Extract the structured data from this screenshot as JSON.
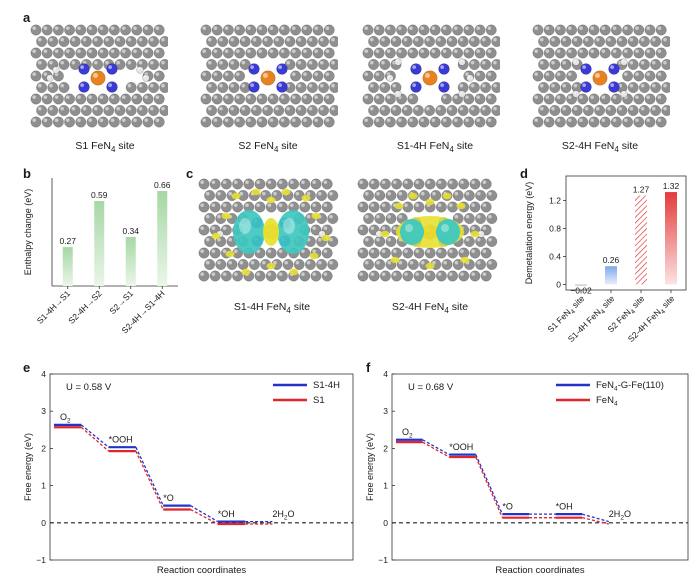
{
  "panels": {
    "a": {
      "letter": "a",
      "structures": [
        {
          "caption_main": "S1 FeN",
          "caption_sub": "4",
          "caption_tail": " site"
        },
        {
          "caption_main": "S2 FeN",
          "caption_sub": "4",
          "caption_tail": " site"
        },
        {
          "caption_main": "S1-4H FeN",
          "caption_sub": "4",
          "caption_tail": " site"
        },
        {
          "caption_main": "S2-4H FeN",
          "caption_sub": "4",
          "caption_tail": " site"
        }
      ]
    },
    "b": {
      "letter": "b"
    },
    "c": {
      "letter": "c",
      "structures": [
        {
          "caption_main": "S1-4H FeN",
          "caption_sub": "4",
          "caption_tail": " site"
        },
        {
          "caption_main": "S2-4H FeN",
          "caption_sub": "4",
          "caption_tail": " site"
        }
      ]
    },
    "d": {
      "letter": "d"
    },
    "e": {
      "letter": "e",
      "potential": "U = 0.58 V"
    },
    "f": {
      "letter": "f",
      "potential": "U = 0.68 V"
    }
  },
  "colors": {
    "carbon": "#8f8f8f",
    "hydrogen": "#e6e6e6",
    "nitrogen": "#3a3ad6",
    "iron": "#e8811e",
    "isosurface_cyan": "#3ec8c0",
    "isosurface_yellow": "#e8e030",
    "bar_green": "#a6d7a4",
    "bar_blue": "#7fa7ea",
    "bar_red": "#e23b3b",
    "line_blue": "#2333c9",
    "line_red": "#e0262c"
  },
  "chart_data": [
    {
      "panel": "b",
      "type": "bar",
      "ylabel": "Enthalpy change (eV)",
      "categories": [
        "S1-4H→S1",
        "S2-4H→S2",
        "S2→S1",
        "S2-4H→S1-4H"
      ],
      "values": [
        0.27,
        0.59,
        0.34,
        0.66
      ],
      "value_labels": [
        "0.27",
        "0.59",
        "0.34",
        "0.66"
      ],
      "ylim": [
        0,
        0.75
      ],
      "grid": false
    },
    {
      "panel": "d",
      "type": "bar",
      "ylabel": "Demetalation energy (eV)",
      "categories": [
        {
          "main": "S1 FeN",
          "sub": "4",
          "tail": " site"
        },
        {
          "main": "S1-4H FeN",
          "sub": "4",
          "tail": " site"
        },
        {
          "main": "S2 FeN",
          "sub": "4",
          "tail": " site"
        },
        {
          "main": "S2-4H FeN",
          "sub": "4",
          "tail": " site"
        }
      ],
      "values": [
        -0.02,
        0.26,
        1.27,
        1.32
      ],
      "value_labels": [
        "−0.02",
        "0.26",
        "1.27",
        "1.32"
      ],
      "yticks": [
        0,
        0.4,
        0.8,
        1.2
      ],
      "ytick_labels": [
        "0",
        "0.4",
        "0.8",
        "1.2"
      ],
      "ylim": [
        -0.08,
        1.55
      ],
      "grid": false
    },
    {
      "panel": "e",
      "type": "line",
      "xlabel": "Reaction coordinates",
      "ylabel": "Free energy (eV)",
      "ylim": [
        -1,
        4
      ],
      "yticks": [
        -1,
        0,
        1,
        2,
        3,
        4
      ],
      "ytick_labels": [
        "−1",
        "0",
        "1",
        "2",
        "3",
        "4"
      ],
      "legend_position": "top-right",
      "steps": [
        {
          "label": "O2",
          "label_main": "O",
          "label_sub": "2"
        },
        {
          "label": "*OOH",
          "label_main": "*OOH",
          "label_sub": ""
        },
        {
          "label": "*O",
          "label_main": "*O",
          "label_sub": ""
        },
        {
          "label": "*OH",
          "label_main": "*OH",
          "label_sub": ""
        },
        {
          "label": "2H2O",
          "label_main": "2H",
          "label_sub": "2",
          "label_tail": "O"
        }
      ],
      "series": [
        {
          "name": "S1-4H",
          "color": "#2333c9",
          "values": [
            2.6,
            2.0,
            0.43,
            0,
            0
          ]
        },
        {
          "name": "S1",
          "color": "#e0262c",
          "values": [
            2.6,
            1.96,
            0.39,
            0,
            0
          ]
        }
      ]
    },
    {
      "panel": "f",
      "type": "line",
      "xlabel": "Reaction coordinates",
      "ylabel": "Free energy (eV)",
      "ylim": [
        -1,
        4
      ],
      "yticks": [
        -1,
        0,
        1,
        2,
        3,
        4
      ],
      "ytick_labels": [
        "−1",
        "0",
        "1",
        "2",
        "3",
        "4"
      ],
      "legend_position": "top-right",
      "steps": [
        {
          "label": "O2",
          "label_main": "O",
          "label_sub": "2"
        },
        {
          "label": "*OOH",
          "label_main": "*OOH",
          "label_sub": ""
        },
        {
          "label": "*O",
          "label_main": "*O",
          "label_sub": ""
        },
        {
          "label": "*OH",
          "label_main": "*OH",
          "label_sub": ""
        },
        {
          "label": "2H2O",
          "label_main": "2H",
          "label_sub": "2",
          "label_tail": "O"
        }
      ],
      "series": [
        {
          "name": "FeN4-G-Fe(110)",
          "legend_main": "FeN",
          "legend_sub": "4",
          "legend_tail": "-G-Fe(110)",
          "color": "#2333c9",
          "values": [
            2.2,
            1.8,
            0.2,
            0.2,
            0
          ]
        },
        {
          "name": "FeN4",
          "legend_main": "FeN",
          "legend_sub": "4",
          "legend_tail": "",
          "color": "#e0262c",
          "values": [
            2.2,
            1.8,
            0.17,
            0.17,
            0
          ]
        }
      ]
    }
  ]
}
